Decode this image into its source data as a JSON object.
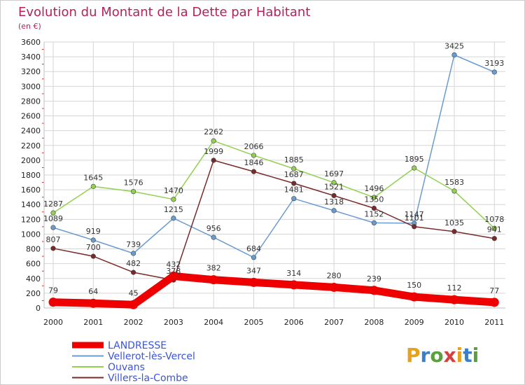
{
  "header": {
    "title": "Evolution du Montant de la Dette par Habitant",
    "subtitle": "(en €)"
  },
  "brand": {
    "logo_text": "Proxiti"
  },
  "colors": {
    "title": "#b5225b",
    "grid": "#d6d6d6",
    "axis": "#bfbfbf"
  },
  "chart_data": {
    "type": "line",
    "title": "Evolution du Montant de la Dette par Habitant",
    "subtitle": "(en €)",
    "xlabel": "",
    "ylabel": "",
    "x": [
      "2000",
      "2001",
      "2002",
      "2003",
      "2004",
      "2005",
      "2006",
      "2007",
      "2008",
      "2009",
      "2010",
      "2011"
    ],
    "ylim": [
      0,
      3600
    ],
    "yticks": [
      0,
      200,
      400,
      600,
      800,
      1000,
      1200,
      1400,
      1600,
      1800,
      2000,
      2200,
      2400,
      2600,
      2800,
      3000,
      3200,
      3400,
      3600
    ],
    "grid": true,
    "legend_position": "bottom-left",
    "series": [
      {
        "name": "LANDRESSE",
        "color": "#ee0000",
        "legend_color": "#3a55d8",
        "emphasis": true,
        "values": [
          79,
          64,
          45,
          432,
          382,
          347,
          314,
          280,
          239,
          150,
          112,
          77
        ]
      },
      {
        "name": "Vellerot-lès-Vercel",
        "color": "#6a9cd0",
        "legend_color": "#3a55d8",
        "values": [
          1089,
          919,
          739,
          1215,
          956,
          684,
          1481,
          1318,
          1152,
          1147,
          3425,
          3193
        ]
      },
      {
        "name": "Ouvans",
        "color": "#92d050",
        "legend_color": "#3a55d8",
        "values": [
          1287,
          1645,
          1576,
          1470,
          2262,
          2066,
          1885,
          1697,
          1496,
          1895,
          1583,
          1078
        ]
      },
      {
        "name": "Villers-la-Combe",
        "color": "#7a2a2a",
        "legend_color": "#3a55d8",
        "values": [
          807,
          700,
          482,
          378,
          1999,
          1846,
          1687,
          1521,
          1350,
          1101,
          1035,
          941
        ]
      }
    ]
  }
}
